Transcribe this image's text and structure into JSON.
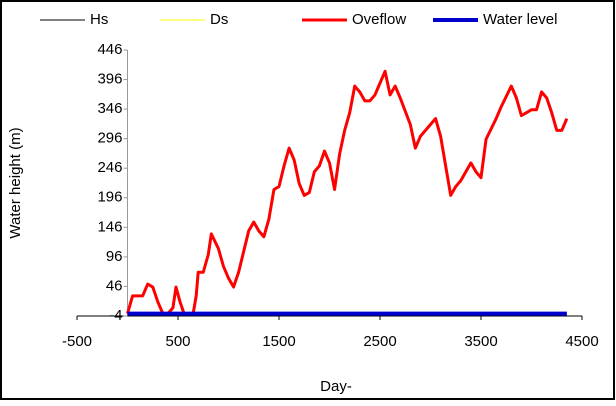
{
  "chart_data": {
    "type": "line",
    "x_label": "Day-",
    "y_label": "Water height (m)",
    "x": [
      0,
      50,
      150,
      200,
      250,
      300,
      350,
      400,
      450,
      480,
      520,
      560,
      650,
      680,
      700,
      750,
      800,
      830,
      900,
      950,
      1000,
      1050,
      1100,
      1200,
      1250,
      1300,
      1350,
      1400,
      1450,
      1500,
      1550,
      1600,
      1650,
      1700,
      1750,
      1800,
      1850,
      1900,
      1950,
      2000,
      2050,
      2100,
      2150,
      2200,
      2250,
      2300,
      2350,
      2400,
      2450,
      2550,
      2600,
      2650,
      2700,
      2800,
      2850,
      2900,
      3000,
      3050,
      3100,
      3150,
      3200,
      3250,
      3300,
      3350,
      3400,
      3450,
      3500,
      3550,
      3650,
      3700,
      3800,
      3850,
      3900,
      3950,
      4000,
      4050,
      4100,
      4150,
      4200,
      4250,
      4300,
      4350
    ],
    "series": [
      {
        "name": "Hs",
        "color": "#000000",
        "width": 1,
        "values": [
          0,
          0,
          0,
          0,
          0,
          0,
          0,
          0,
          0,
          0,
          0,
          0,
          0,
          0,
          0,
          0,
          0,
          0,
          0,
          0,
          0,
          0,
          0,
          0,
          0,
          0,
          0,
          0,
          0,
          0,
          0,
          0,
          0,
          0,
          0,
          0,
          0,
          0,
          0,
          0,
          0,
          0,
          0,
          0,
          0,
          0,
          0,
          0,
          0,
          0,
          0,
          0,
          0,
          0,
          0,
          0,
          0,
          0,
          0,
          0,
          0,
          0,
          0,
          0,
          0,
          0,
          0,
          0,
          0,
          0,
          0,
          0,
          0,
          0,
          0,
          0,
          0,
          0,
          0,
          0,
          0,
          0
        ]
      },
      {
        "name": "Ds",
        "color": "#ffff00",
        "width": 1,
        "values": [
          0,
          0,
          0,
          0,
          0,
          0,
          0,
          0,
          0,
          0,
          0,
          0,
          0,
          0,
          0,
          0,
          0,
          0,
          0,
          0,
          0,
          0,
          0,
          0,
          0,
          0,
          0,
          0,
          0,
          0,
          0,
          0,
          0,
          0,
          0,
          0,
          0,
          0,
          0,
          0,
          0,
          0,
          0,
          0,
          0,
          0,
          0,
          0,
          0,
          0,
          0,
          0,
          0,
          0,
          0,
          0,
          0,
          0,
          0,
          0,
          0,
          0,
          0,
          0,
          0,
          0,
          0,
          0,
          0,
          0,
          0,
          0,
          0,
          0,
          0,
          0,
          0,
          0,
          0,
          0,
          0,
          0
        ]
      },
      {
        "name": "Oveflow",
        "color": "#ff0000",
        "width": 3,
        "values": [
          0,
          30,
          30,
          50,
          45,
          20,
          0,
          0,
          10,
          45,
          20,
          0,
          0,
          30,
          70,
          70,
          100,
          135,
          110,
          80,
          60,
          45,
          70,
          140,
          155,
          140,
          130,
          160,
          210,
          215,
          250,
          280,
          260,
          220,
          200,
          205,
          240,
          250,
          275,
          255,
          210,
          270,
          310,
          340,
          385,
          375,
          360,
          360,
          370,
          410,
          370,
          385,
          365,
          320,
          280,
          300,
          320,
          330,
          300,
          250,
          200,
          215,
          225,
          240,
          255,
          240,
          230,
          295,
          330,
          350,
          385,
          365,
          335,
          340,
          345,
          345,
          375,
          365,
          340,
          310,
          310,
          330
        ]
      },
      {
        "name": "Water level",
        "color": "#0000cc",
        "width": 4,
        "values": [
          0,
          0,
          0,
          0,
          0,
          0,
          0,
          0,
          0,
          0,
          0,
          0,
          0,
          0,
          0,
          0,
          0,
          0,
          0,
          0,
          0,
          0,
          0,
          0,
          0,
          0,
          0,
          0,
          0,
          0,
          0,
          0,
          0,
          0,
          0,
          0,
          0,
          0,
          0,
          0,
          0,
          0,
          0,
          0,
          0,
          0,
          0,
          0,
          0,
          0,
          0,
          0,
          0,
          0,
          0,
          0,
          0,
          0,
          0,
          0,
          0,
          0,
          0,
          0,
          0,
          0,
          0,
          0,
          0,
          0,
          0,
          0,
          0,
          0,
          0,
          0,
          0,
          0,
          0,
          0,
          0,
          0
        ]
      }
    ],
    "xlim": [
      -500,
      4500
    ],
    "xticks": [
      -500,
      500,
      1500,
      2500,
      3500,
      4500
    ],
    "ylim": [
      -4,
      446
    ],
    "yticks": [
      -4,
      46,
      96,
      146,
      196,
      246,
      296,
      346,
      396,
      446
    ],
    "legend": "top"
  }
}
